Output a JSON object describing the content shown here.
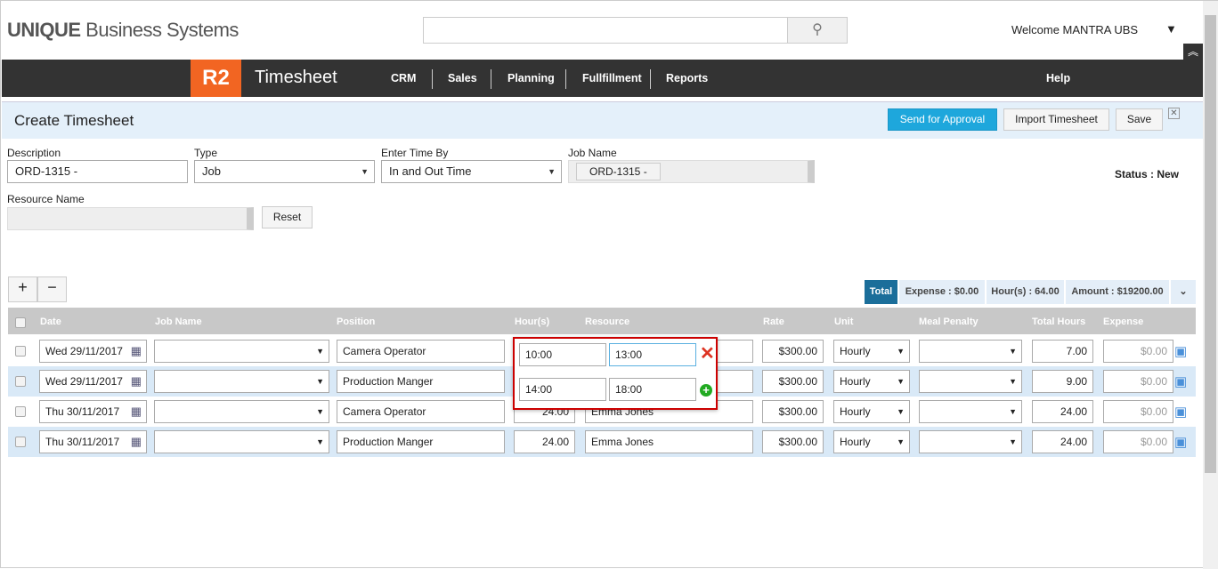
{
  "brand": {
    "logo_bold": "UNIQUE",
    "logo_rest": " Business Systems",
    "app_badge": "R2",
    "app_title": "Timesheet"
  },
  "topbar": {
    "search_placeholder": "",
    "welcome": "Welcome MANTRA UBS"
  },
  "nav": {
    "items": [
      "CRM",
      "Sales",
      "Planning",
      "Fullfillment",
      "Reports"
    ],
    "help": "Help"
  },
  "page": {
    "title": "Create Timesheet",
    "send": "Send for Approval",
    "import": "Import Timesheet",
    "save": "Save",
    "close": "✕"
  },
  "form": {
    "description_label": "Description",
    "description_value": "ORD-1315 -",
    "type_label": "Type",
    "type_value": "Job",
    "enter_label": "Enter Time By",
    "enter_value": "In and Out Time",
    "job_label": "Job Name",
    "job_value": "ORD-1315 -",
    "resource_label": "Resource Name",
    "reset": "Reset",
    "status": "Status : New"
  },
  "totals": {
    "label": "Total",
    "expense": "Expense : $0.00",
    "hours": "Hour(s) : 64.00",
    "amount": "Amount : $19200.00"
  },
  "table": {
    "headers": [
      "Date",
      "Job Name",
      "Position",
      "Hour(s)",
      "Resource",
      "Rate",
      "Unit",
      "Meal Penalty",
      "Total Hours",
      "Expense"
    ],
    "rows": [
      {
        "date": "Wed 29/11/2017",
        "job": "",
        "position": "Camera Operator",
        "hours": "",
        "resource": "",
        "rate": "$300.00",
        "unit": "Hourly",
        "meal": "",
        "total": "7.00",
        "expense": "$0.00"
      },
      {
        "date": "Wed 29/11/2017",
        "job": "",
        "position": "Production Manger",
        "hours": "",
        "resource": "",
        "rate": "$300.00",
        "unit": "Hourly",
        "meal": "",
        "total": "9.00",
        "expense": "$0.00"
      },
      {
        "date": "Thu 30/11/2017",
        "job": "",
        "position": "Camera Operator",
        "hours": "24.00",
        "resource": "Emma Jones",
        "rate": "$300.00",
        "unit": "Hourly",
        "meal": "",
        "total": "24.00",
        "expense": "$0.00"
      },
      {
        "date": "Thu 30/11/2017",
        "job": "",
        "position": "Production Manger",
        "hours": "24.00",
        "resource": "Emma Jones",
        "rate": "$300.00",
        "unit": "Hourly",
        "meal": "",
        "total": "24.00",
        "expense": "$0.00"
      }
    ]
  },
  "popup": {
    "in1": "10:00",
    "out1": "13:00",
    "in2": "14:00",
    "out2": "18:00"
  }
}
